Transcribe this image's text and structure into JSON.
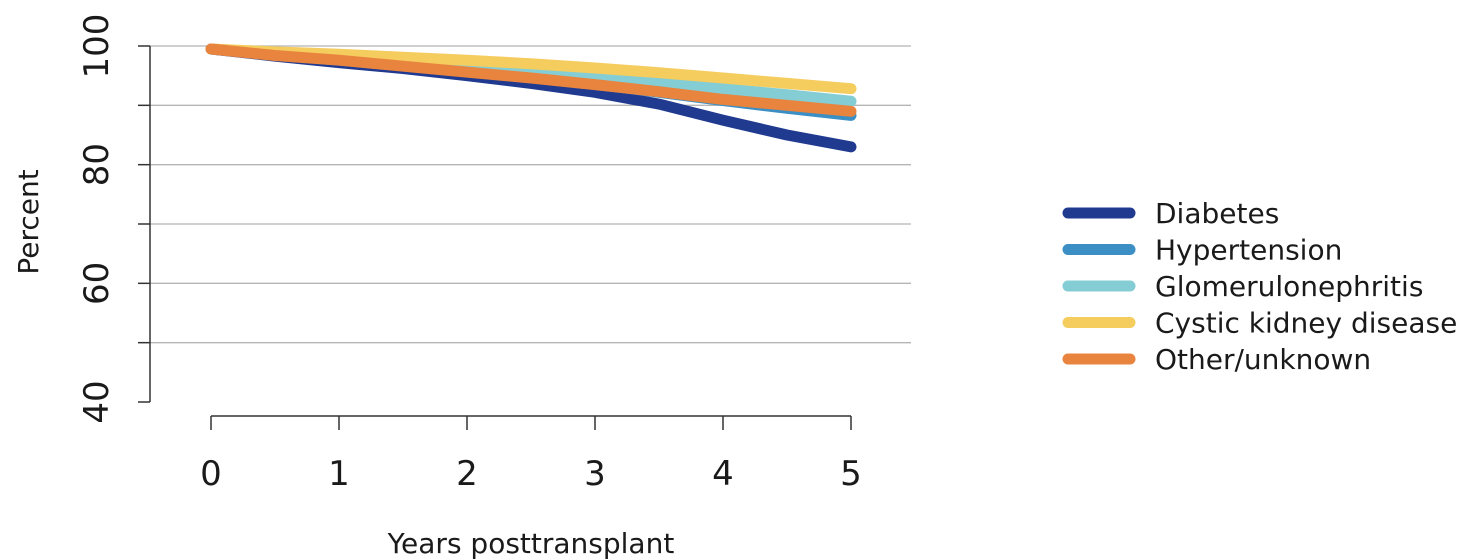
{
  "chart_data": {
    "type": "line",
    "title": "",
    "xlabel": "Years posttransplant",
    "ylabel": "Percent",
    "xlim": [
      0,
      5
    ],
    "ylim": [
      40,
      100
    ],
    "x_ticks": [
      "0",
      "1",
      "2",
      "3",
      "4",
      "5"
    ],
    "y_ticks": [
      "40",
      "60",
      "80",
      "100"
    ],
    "grid": "horizontal",
    "legend_position": "right",
    "x": [
      0,
      0.5,
      1,
      1.5,
      2,
      2.5,
      3,
      3.5,
      4,
      4.5,
      5
    ],
    "series": [
      {
        "name": "Diabetes",
        "color": "#1f3a8f",
        "values": [
          99.5,
          98.3,
          97.2,
          96.2,
          95.0,
          93.7,
          92.2,
          90.2,
          87.5,
          85.0,
          83.0
        ]
      },
      {
        "name": "Hypertension",
        "color": "#3b8fc4",
        "values": [
          99.5,
          98.5,
          97.6,
          96.7,
          95.8,
          94.7,
          93.6,
          92.2,
          90.8,
          89.5,
          88.3
        ]
      },
      {
        "name": "Glomerulonephritis",
        "color": "#84cdd4",
        "values": [
          99.5,
          98.8,
          98.2,
          97.5,
          96.8,
          96.0,
          95.2,
          94.0,
          92.8,
          91.8,
          90.7
        ]
      },
      {
        "name": "Cystic kidney disease",
        "color": "#f5cc5e",
        "values": [
          99.5,
          99.0,
          98.6,
          98.1,
          97.6,
          97.0,
          96.3,
          95.5,
          94.6,
          93.7,
          92.8
        ]
      },
      {
        "name": "Other/unknown",
        "color": "#e9843e",
        "values": [
          99.5,
          98.4,
          97.6,
          96.6,
          95.6,
          94.6,
          93.5,
          92.3,
          91.0,
          90.0,
          89.0
        ]
      }
    ]
  }
}
